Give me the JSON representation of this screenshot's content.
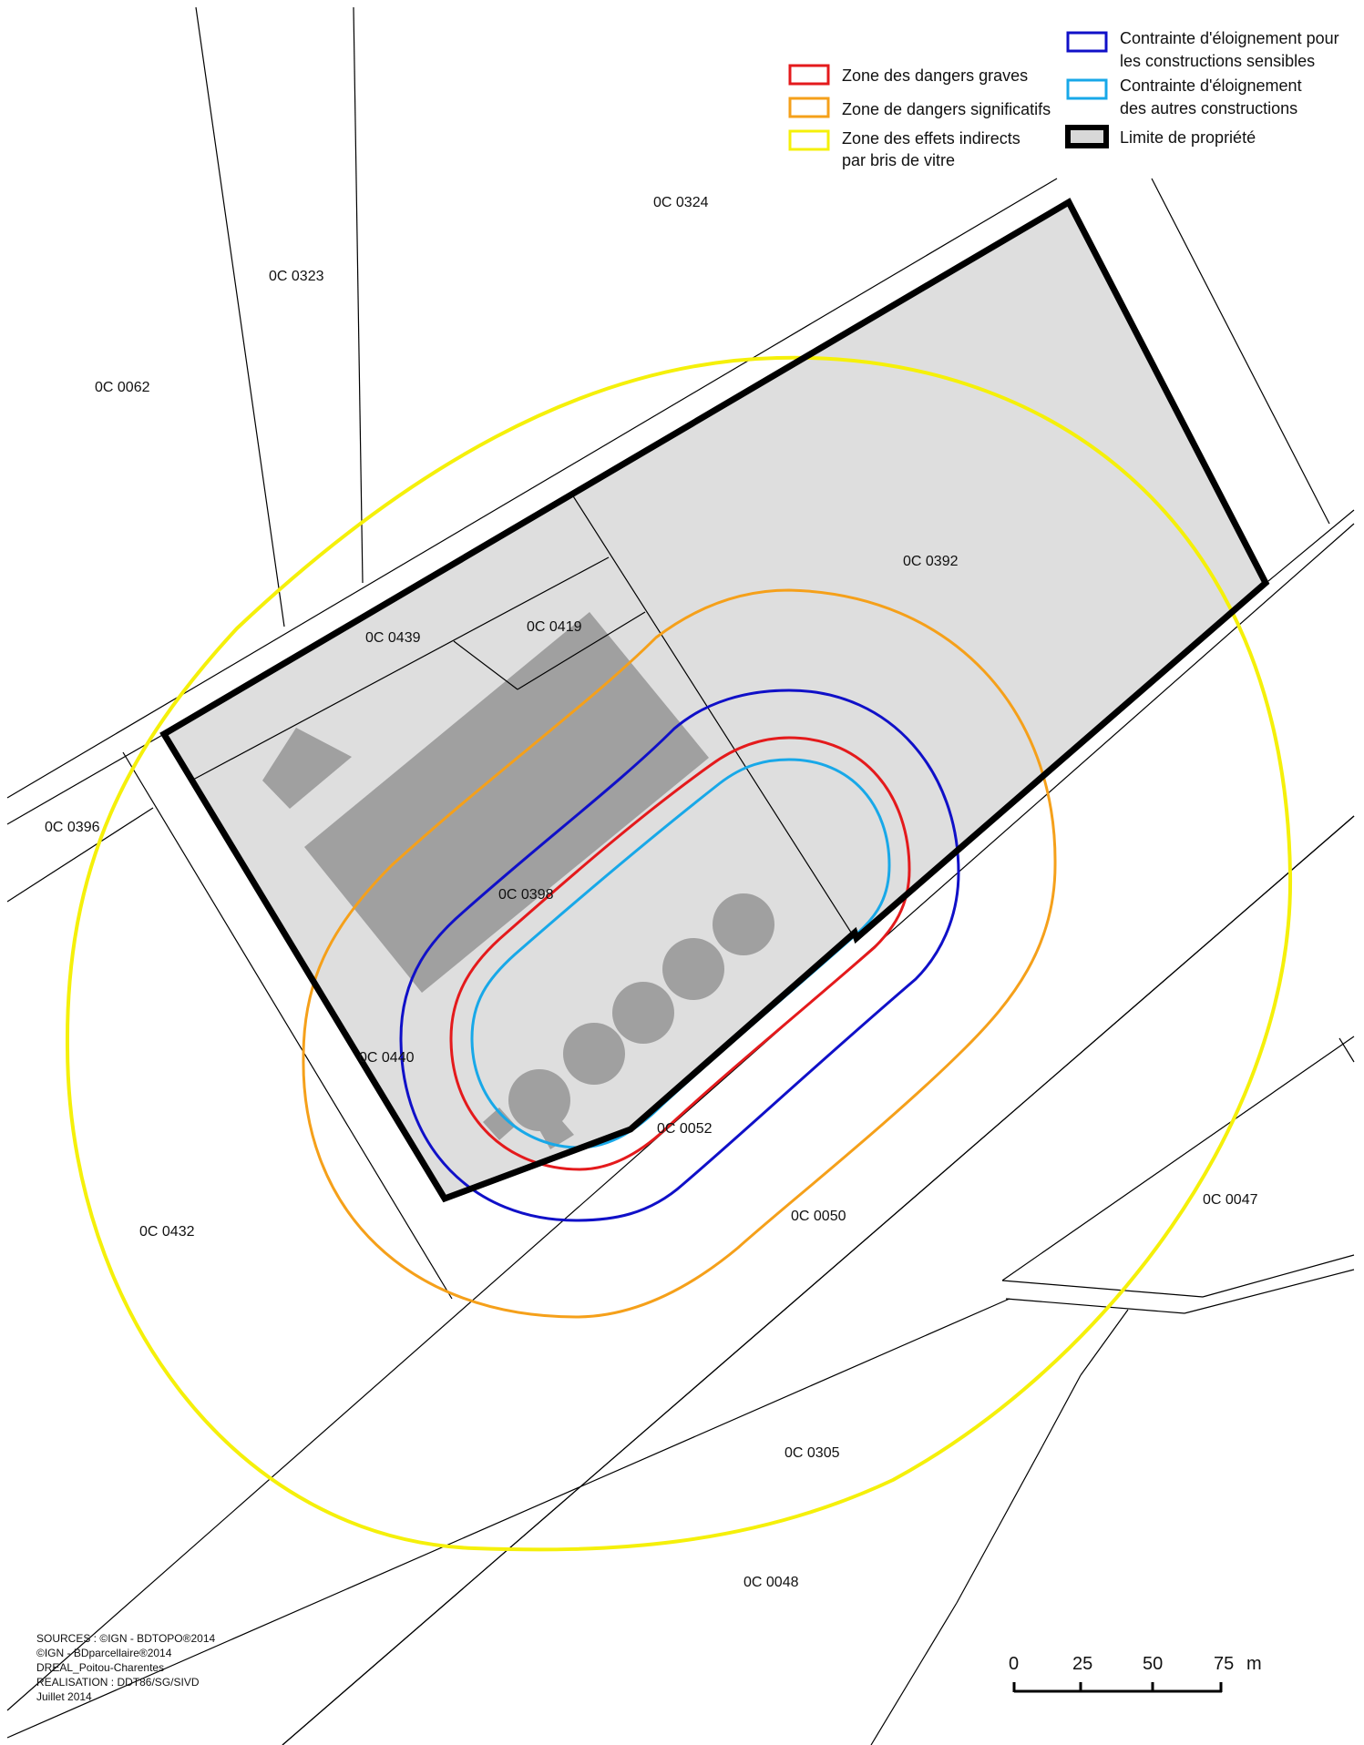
{
  "legend": {
    "left": [
      {
        "color": "#e41a1c",
        "lines": [
          "Zone des dangers graves"
        ]
      },
      {
        "color": "#f5a01a",
        "lines": [
          "Zone de dangers significatifs"
        ]
      },
      {
        "color": "#f5f00a",
        "lines": [
          "Zone des effets indirects",
          "par bris de vitre"
        ]
      }
    ],
    "right": [
      {
        "color": "#1010c8",
        "lines": [
          "Contrainte d'éloignement pour",
          "les constructions sensibles"
        ]
      },
      {
        "color": "#18a8e8",
        "lines": [
          "Contrainte d'éloignement",
          "des autres constructions"
        ]
      },
      {
        "color": "#000000",
        "fill": "#d8d8d8",
        "lines": [
          "Limite de propriété"
        ]
      }
    ]
  },
  "parcels": [
    "0C 0324",
    "0C 0323",
    "0C 0062",
    "0C 0392",
    "0C 0439",
    "0C 0419",
    "0C 0396",
    "0C 0398",
    "0C 0440",
    "0C 0052",
    "0C 0432",
    "0C 0050",
    "0C 0047",
    "0C 0305",
    "0C 0048"
  ],
  "sources": [
    "SOURCES : ©IGN - BDTOPO®2014",
    "©IGN - BDparcellaire®2014",
    "DREAL_Poitou-Charentes",
    "REALISATION : DDT86/SG/SIVD",
    "Juillet 2014"
  ],
  "scale": {
    "ticks": [
      "0",
      "25",
      "50",
      "75"
    ],
    "unit": "m"
  }
}
